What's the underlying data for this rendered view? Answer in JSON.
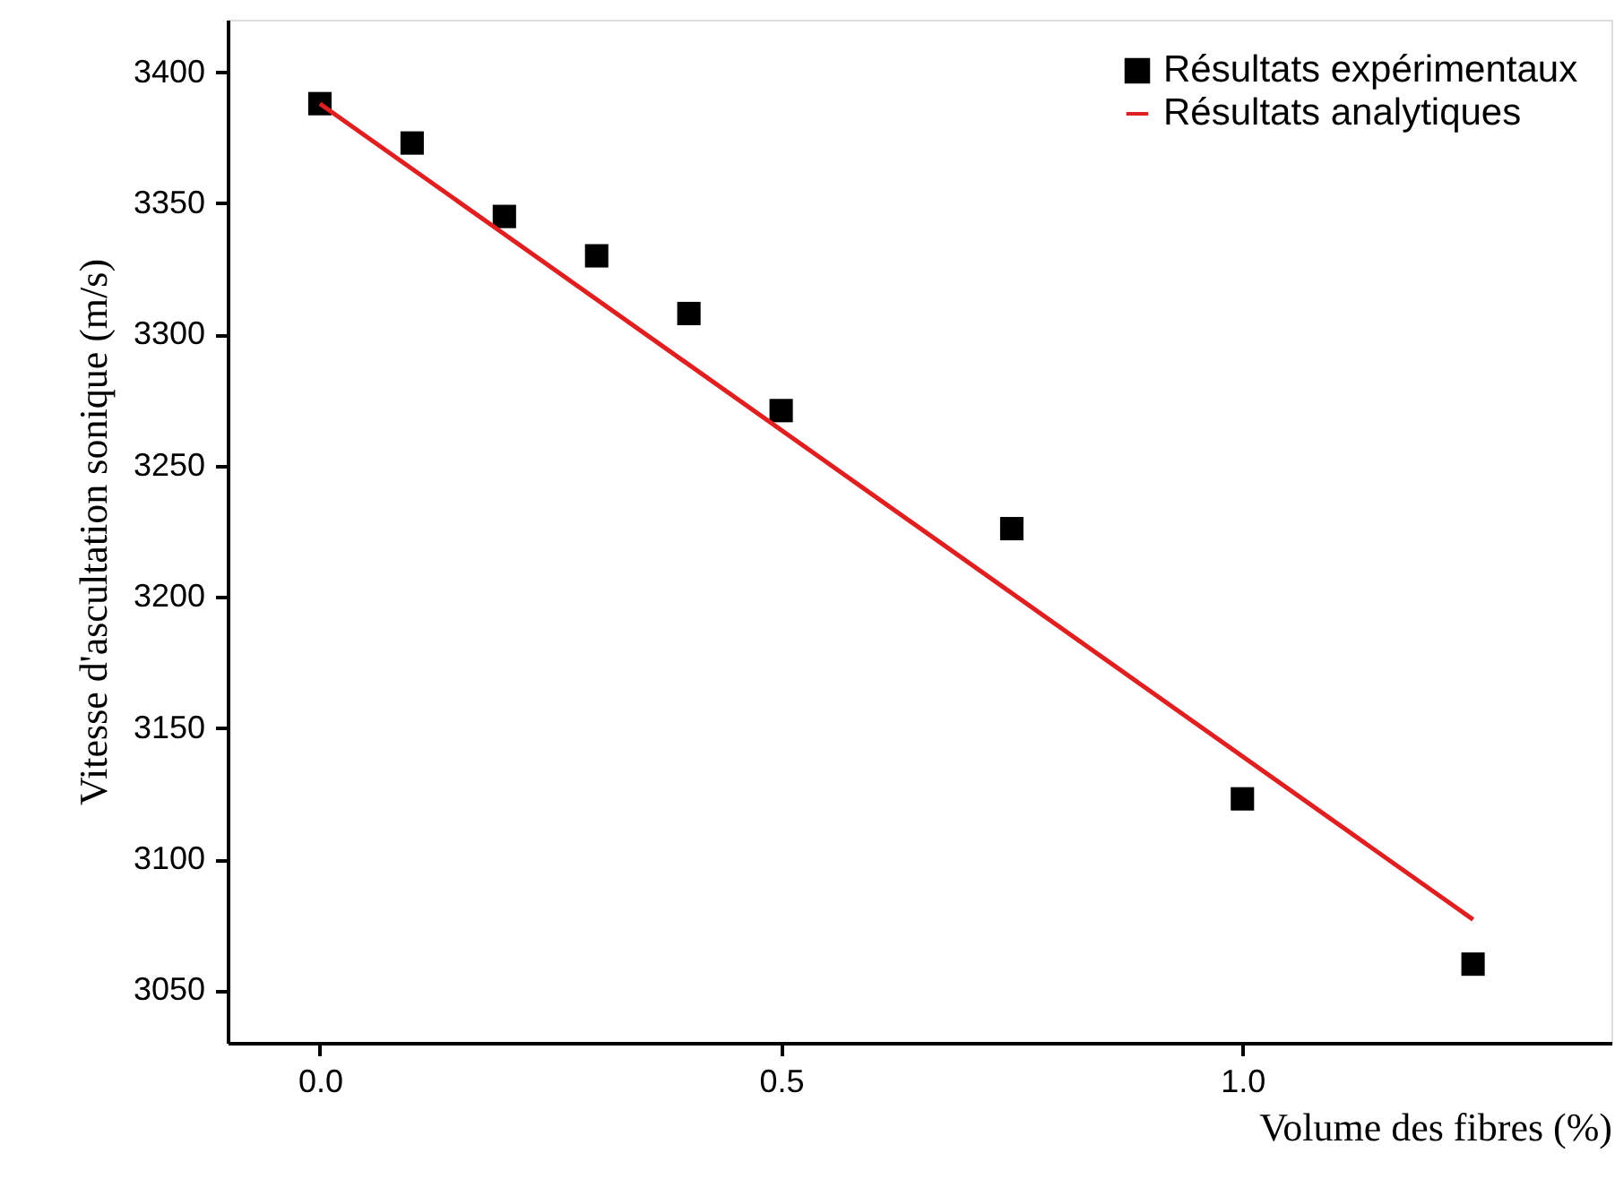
{
  "chart_data": {
    "type": "scatter",
    "xlabel": "Volume des fibres (%)",
    "ylabel": "Vitesse d'ascultation sonique (m/s)",
    "xlim": [
      -0.1,
      1.4
    ],
    "xticks": [
      {
        "value": 0,
        "label": "0.0"
      },
      0.5,
      {
        "value": 1,
        "label": "1.0"
      }
    ],
    "ylim": [
      3030,
      3420
    ],
    "yticks": [
      3050,
      3100,
      3150,
      3200,
      3250,
      3300,
      3350,
      3400
    ],
    "legend": "top right",
    "grid": false,
    "series": [
      {
        "name": "Résultats expérimentaux",
        "marker": "square",
        "color": "#000000",
        "x": [
          0,
          0.1,
          0.2,
          0.3,
          0.4,
          0.5,
          0.75,
          1.0,
          1.25
        ],
        "values": [
          3388,
          3373,
          3345,
          3330,
          3308,
          3271,
          3226,
          3123,
          3060
        ]
      },
      {
        "name": "Résultats analytiques",
        "type": "line",
        "line_style": "solid",
        "color": "#e02020",
        "x": [
          0,
          1.25
        ],
        "values": [
          3388,
          3077
        ]
      }
    ]
  }
}
